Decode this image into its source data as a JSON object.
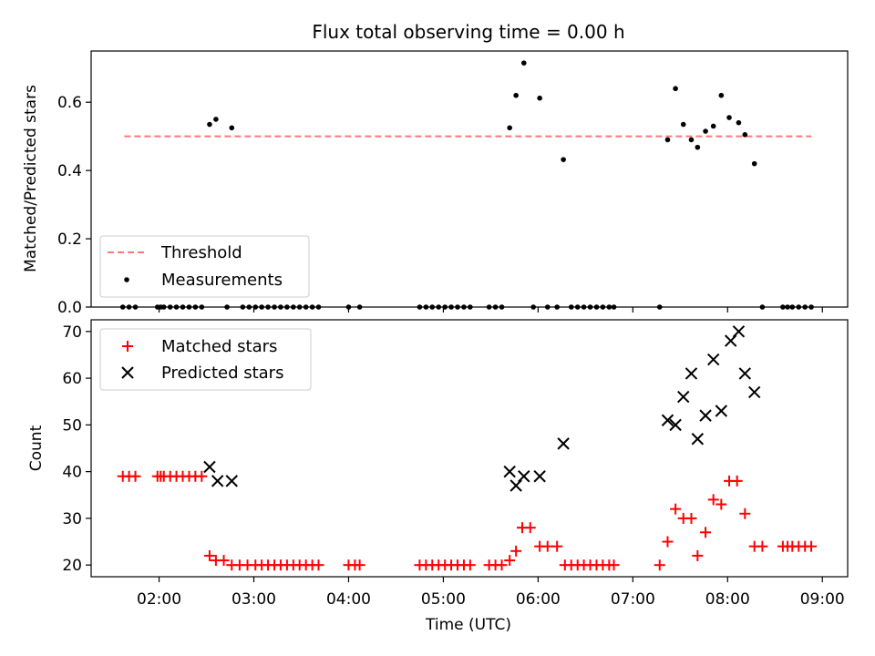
{
  "chart_data": [
    {
      "type": "scatter",
      "title": "Flux total observing time = 0.00 h",
      "xlabel": "",
      "ylabel": "Matched/Predicted stars",
      "ylim": [
        0,
        0.75
      ],
      "xlim_hours": [
        1.283,
        9.267
      ],
      "yticks": [
        0.0,
        0.2,
        0.4,
        0.6
      ],
      "ytick_labels": [
        "0.0",
        "0.2",
        "0.4",
        "0.6"
      ],
      "legend": {
        "position": "lower-left"
      },
      "series": [
        {
          "name": "Threshold",
          "kind": "dashed-line",
          "color": "#ff7777",
          "x": [
            1.633,
            8.883
          ],
          "y": [
            0.5,
            0.5
          ]
        },
        {
          "name": "Measurements",
          "kind": "dot",
          "color": "#000000",
          "x": [
            1.617,
            1.683,
            1.75,
            1.983,
            2.017,
            2.05,
            2.117,
            2.183,
            2.25,
            2.317,
            2.383,
            2.45,
            2.533,
            2.6,
            2.717,
            2.767,
            2.883,
            2.95,
            3.017,
            3.083,
            3.15,
            3.217,
            3.283,
            3.35,
            3.417,
            3.483,
            3.55,
            3.617,
            3.683,
            4.0,
            4.117,
            4.75,
            4.817,
            4.883,
            4.95,
            5.017,
            5.083,
            5.15,
            5.217,
            5.283,
            5.483,
            5.55,
            5.617,
            5.7,
            5.767,
            5.85,
            5.95,
            6.017,
            6.1,
            6.2,
            6.267,
            6.35,
            6.417,
            6.483,
            6.55,
            6.617,
            6.683,
            6.75,
            6.8,
            7.283,
            7.367,
            7.45,
            7.533,
            7.617,
            7.683,
            7.767,
            7.85,
            7.933,
            8.017,
            8.117,
            8.183,
            8.283,
            8.367,
            8.583,
            8.633,
            8.683,
            8.75,
            8.817,
            8.883
          ],
          "y": [
            0,
            0,
            0,
            0,
            0,
            0,
            0,
            0,
            0,
            0,
            0,
            0,
            0.535,
            0.55,
            0,
            0.525,
            0,
            0,
            0,
            0,
            0,
            0,
            0,
            0,
            0,
            0,
            0,
            0,
            0,
            0,
            0,
            0,
            0,
            0,
            0,
            0,
            0,
            0,
            0,
            0,
            0,
            0,
            0,
            0.525,
            0.62,
            0.715,
            0,
            0.612,
            0,
            0,
            0.432,
            0,
            0,
            0,
            0,
            0,
            0,
            0,
            0,
            0,
            0.49,
            0.64,
            0.535,
            0.49,
            0.468,
            0.515,
            0.53,
            0.62,
            0.555,
            0.54,
            0.505,
            0.42,
            0,
            0,
            0,
            0,
            0,
            0,
            0
          ]
        }
      ]
    },
    {
      "type": "scatter",
      "title": "",
      "xlabel": "Time (UTC)",
      "ylabel": "Count",
      "ylim": [
        17.5,
        72.5
      ],
      "xlim_hours": [
        1.283,
        9.267
      ],
      "yticks": [
        20,
        30,
        40,
        50,
        60,
        70
      ],
      "ytick_labels": [
        "20",
        "30",
        "40",
        "50",
        "60",
        "70"
      ],
      "xticks_hours": [
        2,
        3,
        4,
        5,
        6,
        7,
        8,
        9
      ],
      "xtick_labels": [
        "02:00",
        "03:00",
        "04:00",
        "05:00",
        "06:00",
        "07:00",
        "08:00",
        "09:00"
      ],
      "legend": {
        "position": "top-left"
      },
      "series": [
        {
          "name": "Matched stars",
          "kind": "plus",
          "color": "#ff0000",
          "x": [
            1.617,
            1.683,
            1.75,
            1.983,
            2.017,
            2.05,
            2.117,
            2.183,
            2.25,
            2.317,
            2.383,
            2.45,
            2.533,
            2.6,
            2.683,
            2.767,
            2.85,
            2.933,
            3.017,
            3.083,
            3.15,
            3.217,
            3.283,
            3.35,
            3.417,
            3.483,
            3.55,
            3.617,
            3.683,
            4.0,
            4.067,
            4.117,
            4.75,
            4.817,
            4.883,
            4.95,
            5.017,
            5.083,
            5.15,
            5.217,
            5.283,
            5.483,
            5.55,
            5.617,
            5.7,
            5.767,
            5.833,
            5.917,
            6.017,
            6.1,
            6.2,
            6.283,
            6.35,
            6.417,
            6.483,
            6.55,
            6.617,
            6.683,
            6.75,
            6.8,
            7.283,
            7.367,
            7.45,
            7.533,
            7.617,
            7.683,
            7.767,
            7.85,
            7.933,
            8.017,
            8.1,
            8.183,
            8.283,
            8.367,
            8.583,
            8.633,
            8.683,
            8.75,
            8.817,
            8.883
          ],
          "y": [
            39,
            39,
            39,
            39,
            39,
            39,
            39,
            39,
            39,
            39,
            39,
            39,
            22,
            21,
            21,
            20,
            20,
            20,
            20,
            20,
            20,
            20,
            20,
            20,
            20,
            20,
            20,
            20,
            20,
            20,
            20,
            20,
            20,
            20,
            20,
            20,
            20,
            20,
            20,
            20,
            20,
            20,
            20,
            20,
            21,
            23,
            28,
            28,
            24,
            24,
            24,
            20,
            20,
            20,
            20,
            20,
            20,
            20,
            20,
            20,
            20,
            25,
            32,
            30,
            30,
            22,
            27,
            34,
            33,
            38,
            38,
            31,
            24,
            24,
            24,
            24,
            24,
            24,
            24,
            24
          ]
        },
        {
          "name": "Predicted stars",
          "kind": "x",
          "color": "#000000",
          "x": [
            2.533,
            2.617,
            2.767,
            5.7,
            5.767,
            5.85,
            6.017,
            6.267,
            7.367,
            7.45,
            7.533,
            7.617,
            7.683,
            7.767,
            7.85,
            7.933,
            8.033,
            8.117,
            8.183,
            8.283
          ],
          "y": [
            41,
            38,
            38,
            40,
            37,
            39,
            39,
            46,
            51,
            50,
            56,
            61,
            47,
            52,
            64,
            53,
            68,
            70,
            61,
            57
          ]
        }
      ]
    }
  ]
}
